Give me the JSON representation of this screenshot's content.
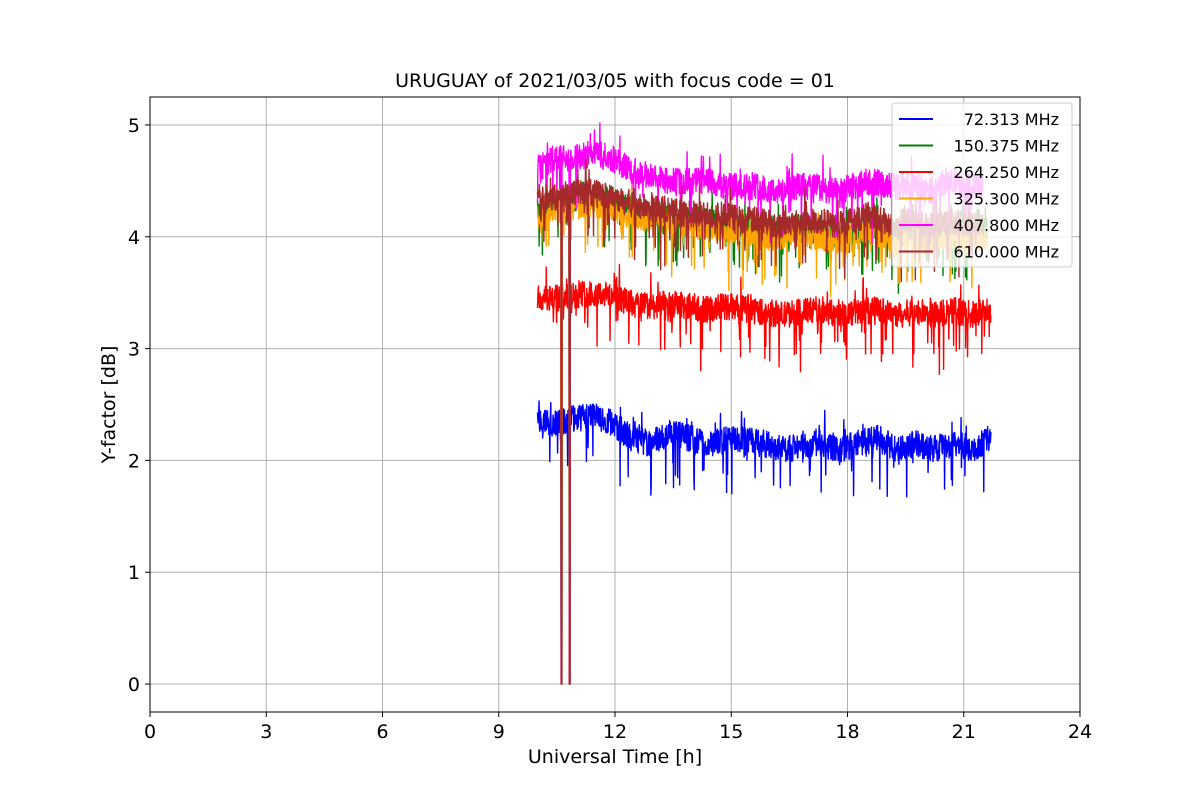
{
  "chart_data": {
    "type": "line",
    "title": "URUGUAY of 2021/03/05 with focus code = 01",
    "xlabel": "Universal Time [h]",
    "ylabel": "Y-factor [dB]",
    "xlim": [
      0,
      24
    ],
    "ylim": [
      -0.25,
      5.25
    ],
    "xticks": [
      0,
      3,
      6,
      9,
      12,
      15,
      18,
      21,
      24
    ],
    "yticks": [
      0,
      1,
      2,
      3,
      4,
      5
    ],
    "grid": true,
    "legend_position": "top-right",
    "dip": {
      "x_start": 10.6,
      "x_end": 10.85,
      "min_value": 0.0
    },
    "series": [
      {
        "name": "72.313 MHz",
        "color": "#0000ff",
        "x_start": 10.0,
        "x_end": 21.7,
        "values": [
          2.35,
          2.32,
          2.38,
          2.4,
          2.33,
          2.2,
          2.15,
          2.25,
          2.2,
          2.15,
          2.18,
          2.2,
          2.15,
          2.1,
          2.12,
          2.15,
          2.1,
          2.15,
          2.2,
          2.1,
          2.15,
          2.1,
          2.15,
          2.1,
          2.2
        ]
      },
      {
        "name": "150.375 MHz",
        "color": "#008000",
        "x_start": 10.0,
        "x_end": 21.6,
        "values": [
          4.25,
          4.3,
          4.35,
          4.4,
          4.35,
          4.25,
          4.2,
          4.2,
          4.15,
          4.15,
          4.1,
          4.1,
          4.05,
          4.05,
          4.1,
          4.05,
          4.0,
          4.05,
          4.1,
          4.0,
          4.05,
          4.0,
          4.05,
          4.0,
          4.05
        ]
      },
      {
        "name": "264.250 MHz",
        "color": "#ff0000",
        "x_start": 10.0,
        "x_end": 21.7,
        "values": [
          3.45,
          3.45,
          3.48,
          3.5,
          3.47,
          3.4,
          3.38,
          3.4,
          3.38,
          3.35,
          3.38,
          3.35,
          3.33,
          3.3,
          3.33,
          3.35,
          3.3,
          3.33,
          3.35,
          3.3,
          3.33,
          3.3,
          3.35,
          3.3,
          3.35
        ]
      },
      {
        "name": "325.300 MHz",
        "color": "#ffa500",
        "x_start": 10.0,
        "x_end": 21.6,
        "values": [
          4.2,
          4.25,
          4.25,
          4.3,
          4.25,
          4.2,
          4.15,
          4.15,
          4.1,
          4.1,
          4.05,
          4.05,
          4.0,
          4.0,
          4.05,
          4.0,
          3.95,
          4.0,
          4.05,
          3.95,
          4.0,
          3.95,
          4.0,
          3.95,
          4.0
        ]
      },
      {
        "name": "407.800 MHz",
        "color": "#ff00ff",
        "x_start": 10.0,
        "x_end": 21.5,
        "values": [
          4.65,
          4.7,
          4.7,
          4.75,
          4.7,
          4.6,
          4.55,
          4.5,
          4.5,
          4.5,
          4.45,
          4.45,
          4.45,
          4.4,
          4.45,
          4.45,
          4.4,
          4.45,
          4.5,
          4.45,
          4.45,
          4.4,
          4.5,
          4.45,
          4.45
        ]
      },
      {
        "name": "610.000 MHz",
        "color": "#a52a2a",
        "x_start": 10.0,
        "x_end": 21.5,
        "values": [
          4.35,
          4.35,
          4.4,
          4.4,
          4.35,
          4.3,
          4.25,
          4.25,
          4.2,
          4.2,
          4.2,
          4.15,
          4.15,
          4.1,
          4.15,
          4.15,
          4.1,
          4.15,
          4.2,
          4.1,
          4.15,
          4.1,
          4.15,
          4.1,
          4.15
        ]
      }
    ]
  }
}
